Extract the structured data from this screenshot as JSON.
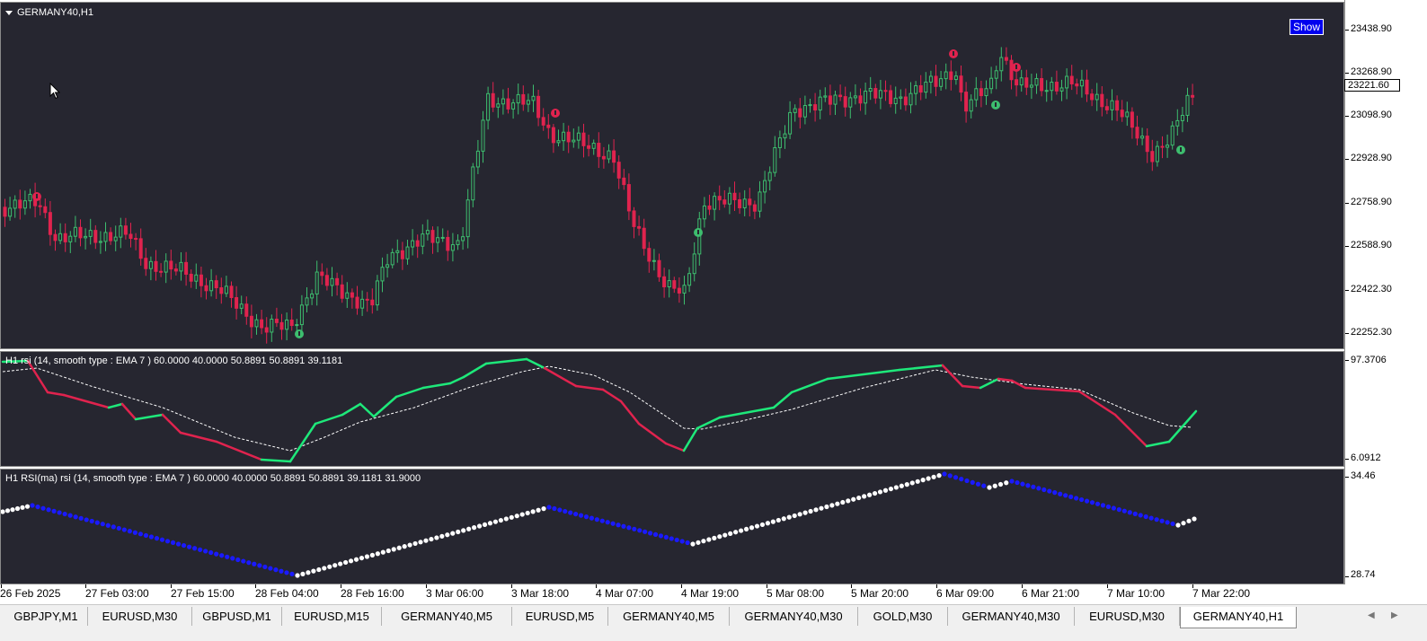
{
  "chart": {
    "title": "GERMANY40,H1",
    "show_button": "Show",
    "current_price": "23221.60",
    "price_axis": [
      "23438.90",
      "23268.90",
      "23098.90",
      "22928.90",
      "22758.90",
      "22588.90",
      "22422.30",
      "22252.30"
    ],
    "colors": {
      "background": "#262630",
      "bull": "#3dbd6e",
      "bear": "#e0234e",
      "rsi_up": "#1ee87a",
      "rsi_down": "#e0234e",
      "dot_up": "#ffffff",
      "dot_down": "#1a1aff"
    }
  },
  "rsi_panel": {
    "title": "H1 rsi (14, smooth type : EMA  7 ) 60.0000 40.0000 50.8891 50.8891 39.1181",
    "axis_top": "97.3706",
    "axis_bottom": "6.0912"
  },
  "rsi_ma_panel": {
    "title": "H1 RSI(ma) rsi (14, smooth type : EMA  7 ) 60.0000 40.0000 50.8891 50.8891 39.1181 31.9000",
    "axis_top": "34.46",
    "axis_bottom": "28.74"
  },
  "time_axis": [
    "26 Feb 2025",
    "27 Feb 03:00",
    "27 Feb 15:00",
    "28 Feb 04:00",
    "28 Feb 16:00",
    "3 Mar 06:00",
    "3 Mar 18:00",
    "4 Mar 07:00",
    "4 Mar 19:00",
    "5 Mar 08:00",
    "5 Mar 20:00",
    "6 Mar 09:00",
    "6 Mar 21:00",
    "7 Mar 10:00",
    "7 Mar 22:00"
  ],
  "tabs": [
    "GBPJPY,M1",
    "EURUSD,M30",
    "GBPUSD,M1",
    "EURUSD,M15",
    "GERMANY40,M5",
    "EURUSD,M5",
    "GERMANY40,M5",
    "GERMANY40,M30",
    "GOLD,M30",
    "GERMANY40,M30",
    "EURUSD,M30",
    "GERMANY40,H1"
  ],
  "active_tab": "GERMANY40,H1"
}
